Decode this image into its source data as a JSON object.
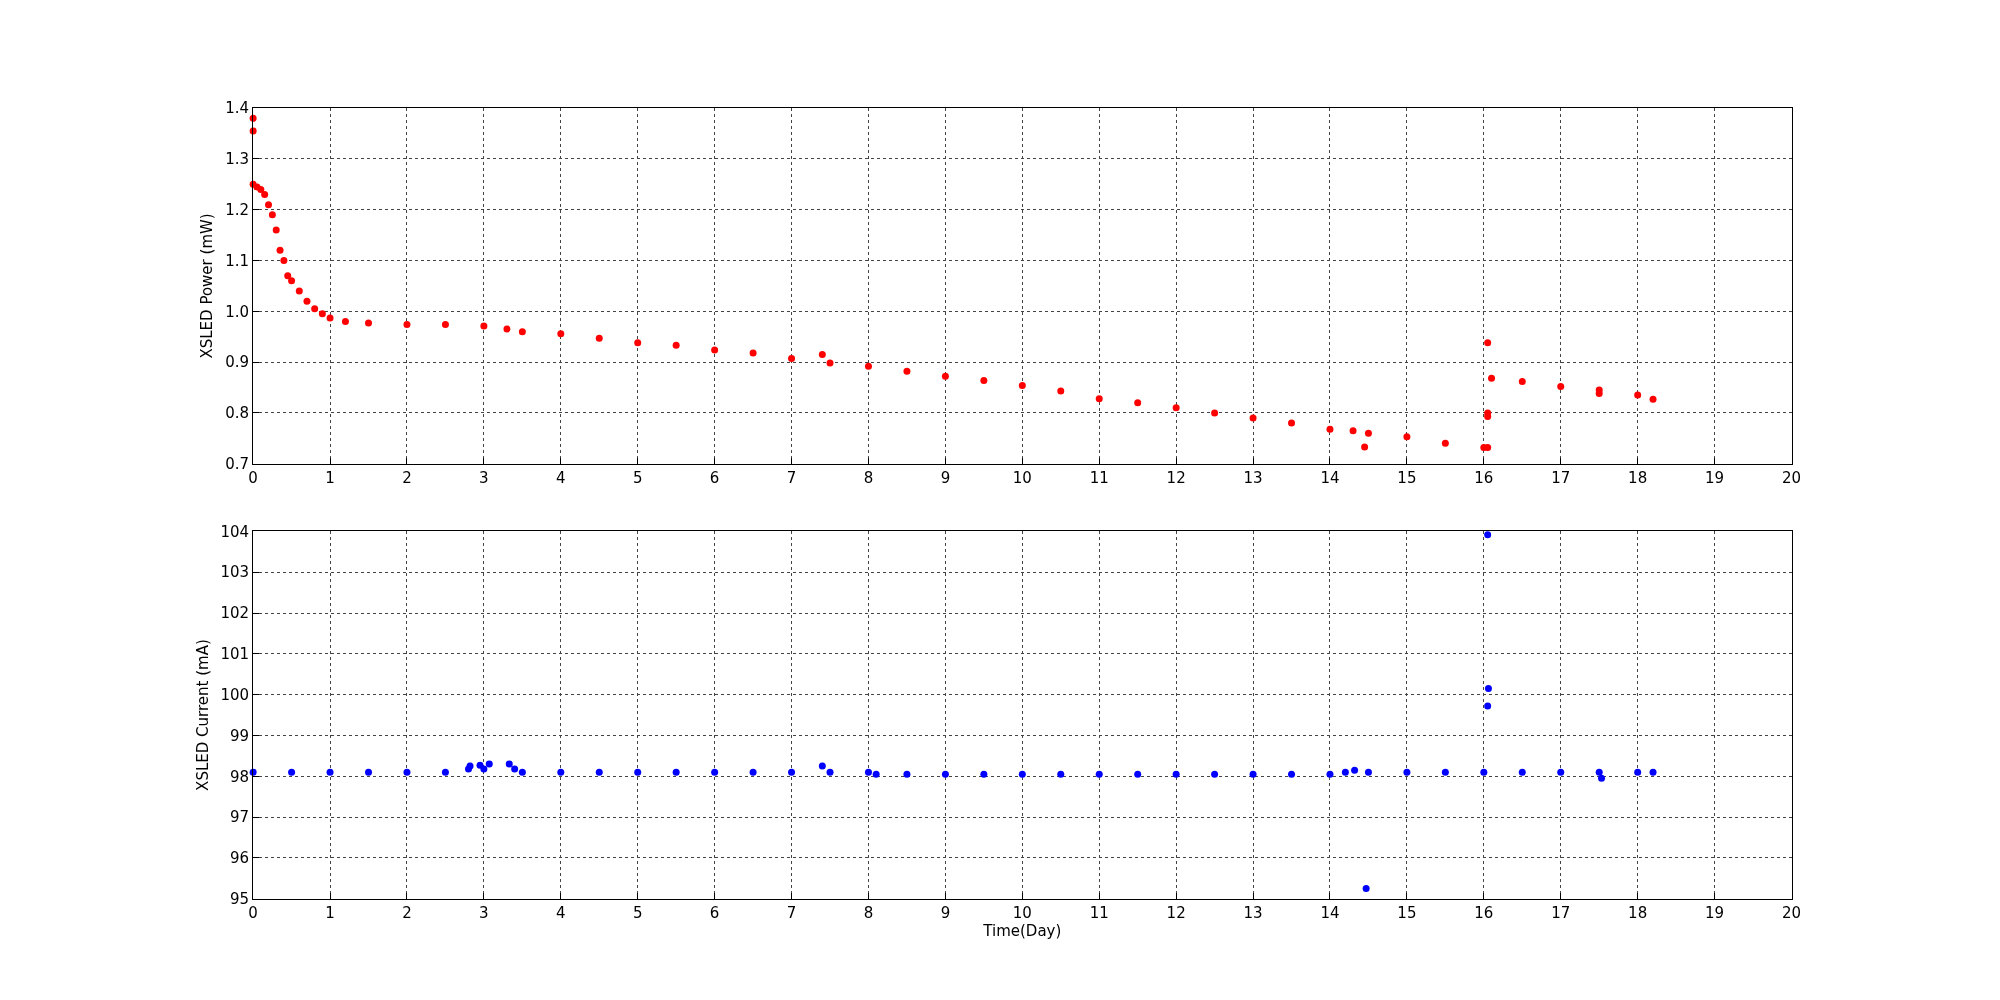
{
  "chart_data": [
    {
      "type": "scatter",
      "ylabel": "XSLED Power (mW)",
      "xlim": [
        0,
        20
      ],
      "xticks": [
        0,
        1,
        2,
        3,
        4,
        5,
        6,
        7,
        8,
        9,
        10,
        11,
        12,
        13,
        14,
        15,
        16,
        17,
        18,
        19,
        20
      ],
      "ylim": [
        0.7,
        1.4
      ],
      "yticks": [
        {
          "value": 0.7,
          "label": "0.7"
        },
        {
          "value": 0.8,
          "label": "0.8"
        },
        {
          "value": 0.9,
          "label": "0.9"
        },
        {
          "value": 1.0,
          "label": "1.0"
        },
        {
          "value": 1.1,
          "label": "1.1"
        },
        {
          "value": 1.2,
          "label": "1.2"
        },
        {
          "value": 1.3,
          "label": "1.3"
        },
        {
          "value": 1.4,
          "label": "1.4"
        }
      ],
      "grid": true,
      "marker": "circle",
      "series": [
        {
          "color": "#ff0000",
          "x": [
            0,
            0.05,
            0.1,
            0.15,
            0.2,
            0.25,
            0.3,
            0.35,
            0.4,
            0.45,
            0.5,
            0.6,
            0.7,
            0.8,
            0.9,
            1.0,
            1.2,
            1.5,
            2,
            2.5,
            3,
            3.3,
            3.5,
            4,
            4.5,
            5,
            5.5,
            6,
            6.5,
            7,
            7.5,
            8,
            8.5,
            9,
            9.5,
            10,
            10.5,
            11,
            11.5,
            12,
            12.5,
            13,
            13.5,
            14,
            14.5,
            15,
            15.5,
            16,
            16.05,
            16.1,
            16.5,
            17,
            17.5,
            18,
            18.2,
            0,
            0,
            7.4,
            14.3,
            14.45,
            16.05,
            16.05,
            16.05,
            17.5
          ],
          "values": [
            1.25,
            1.245,
            1.24,
            1.23,
            1.21,
            1.19,
            1.16,
            1.12,
            1.1,
            1.07,
            1.06,
            1.04,
            1.02,
            1.005,
            0.995,
            0.987,
            0.98,
            0.977,
            0.974,
            0.974,
            0.971,
            0.965,
            0.96,
            0.956,
            0.947,
            0.938,
            0.933,
            0.924,
            0.918,
            0.907,
            0.898,
            0.892,
            0.882,
            0.872,
            0.864,
            0.854,
            0.843,
            0.828,
            0.82,
            0.81,
            0.8,
            0.79,
            0.78,
            0.768,
            0.76,
            0.753,
            0.74,
            0.732,
            0.732,
            0.868,
            0.862,
            0.852,
            0.845,
            0.835,
            0.827,
            1.38,
            1.355,
            0.915,
            0.765,
            0.733,
            0.938,
            0.8,
            0.793,
            0.838
          ]
        }
      ]
    },
    {
      "type": "scatter",
      "xlabel": "Time(Day)",
      "ylabel": "XSLED Current (mA)",
      "xlim": [
        0,
        20
      ],
      "xticks": [
        0,
        1,
        2,
        3,
        4,
        5,
        6,
        7,
        8,
        9,
        10,
        11,
        12,
        13,
        14,
        15,
        16,
        17,
        18,
        19,
        20
      ],
      "ylim": [
        95,
        104
      ],
      "yticks": [
        95,
        96,
        97,
        98,
        99,
        100,
        101,
        102,
        103,
        104
      ],
      "grid": true,
      "marker": "circle",
      "series": [
        {
          "color": "#0000ff",
          "x": [
            0,
            0.5,
            1,
            1.5,
            2,
            2.5,
            2.8,
            3,
            3.4,
            3.5,
            4,
            4.5,
            5,
            5.5,
            6,
            6.5,
            7,
            7.5,
            8,
            8.1,
            8.5,
            9,
            9.5,
            10,
            10.5,
            11,
            11.5,
            12,
            12.5,
            13,
            13.5,
            14,
            14.2,
            14.5,
            15,
            15.5,
            16,
            16.5,
            17,
            17.5,
            18,
            18.2,
            2.82,
            2.95,
            3.07,
            3.33,
            7.4,
            14.32,
            14.47,
            16.05,
            16.06,
            16.05,
            17.53
          ],
          "values": [
            98.1,
            98.1,
            98.1,
            98.1,
            98.1,
            98.1,
            98.18,
            98.18,
            98.18,
            98.1,
            98.1,
            98.1,
            98.1,
            98.1,
            98.1,
            98.1,
            98.1,
            98.1,
            98.1,
            98.05,
            98.05,
            98.05,
            98.05,
            98.05,
            98.05,
            98.05,
            98.05,
            98.05,
            98.05,
            98.05,
            98.05,
            98.05,
            98.1,
            98.1,
            98.1,
            98.1,
            98.1,
            98.1,
            98.1,
            98.1,
            98.1,
            98.1,
            98.25,
            98.27,
            98.3,
            98.3,
            98.25,
            98.15,
            95.25,
            103.92,
            100.15,
            99.72,
            97.95
          ]
        }
      ]
    }
  ]
}
